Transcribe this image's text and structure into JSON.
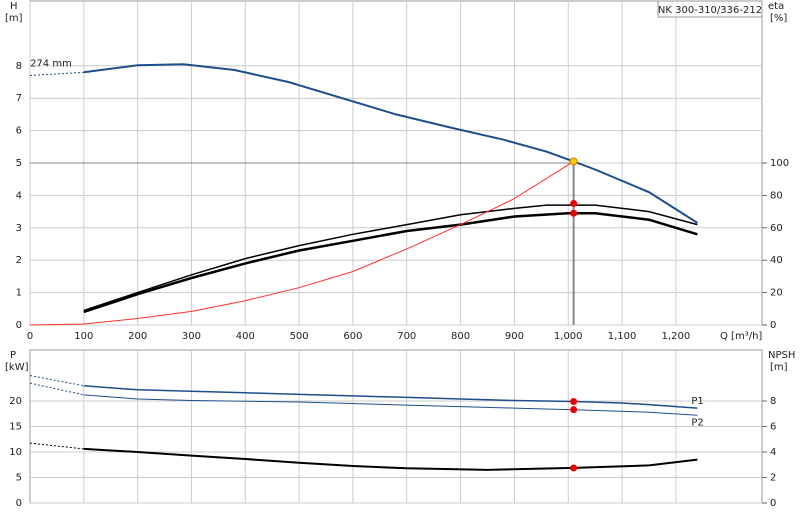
{
  "chart_data": [
    {
      "type": "line",
      "title": "NK 300-310/336-212",
      "ylabel": "H",
      "yunit": "[m]",
      "y2label": "eta",
      "y2unit": "[%]",
      "xlabel": "Q [m³/h]",
      "xlim": [
        0,
        1360
      ],
      "ylim": [
        0,
        10
      ],
      "y2lim": [
        0,
        200
      ],
      "grid": true,
      "xticks": [
        0,
        100,
        200,
        300,
        400,
        500,
        600,
        700,
        800,
        900,
        {
          "value": 1000,
          "label": "1,000"
        },
        {
          "value": 1100,
          "label": "1,100"
        },
        {
          "value": 1200,
          "label": "1,200"
        }
      ],
      "yticks": [
        0,
        1,
        2,
        3,
        4,
        5,
        6,
        7,
        8
      ],
      "y2ticks": [
        0,
        20,
        40,
        60,
        80,
        100
      ],
      "hline": 5,
      "vline": 1010,
      "series": [
        {
          "label": "274 mm",
          "label_at": "start",
          "color": "#1f4e8c",
          "width": 2,
          "axis": "y",
          "x": [
            100,
            200,
            285,
            380,
            480,
            580,
            680,
            780,
            880,
            960,
            1010,
            1050,
            1150,
            1240
          ],
          "values": [
            7.8,
            8.02,
            8.05,
            7.87,
            7.5,
            7.0,
            6.5,
            6.1,
            5.72,
            5.35,
            5.05,
            4.8,
            4.1,
            3.15
          ]
        },
        {
          "color": "#1f4e8c",
          "width": 1,
          "dashed": true,
          "axis": "y",
          "x": [
            0,
            100
          ],
          "values": [
            7.7,
            7.8
          ]
        },
        {
          "color": "#000000",
          "width": 1.5,
          "axis": "y2",
          "x": [
            100,
            200,
            300,
            400,
            500,
            600,
            700,
            800,
            900,
            960,
            1050,
            1150,
            1240
          ],
          "values": [
            9,
            20,
            31,
            41,
            49,
            56,
            62,
            68,
            72,
            74,
            74,
            70,
            62
          ]
        },
        {
          "color": "#000000",
          "width": 2.5,
          "axis": "y2",
          "x": [
            100,
            200,
            300,
            400,
            500,
            600,
            700,
            800,
            900,
            1000,
            1050,
            1150,
            1240
          ],
          "values": [
            8,
            19,
            29,
            38,
            46,
            52,
            58,
            62,
            67,
            69,
            69,
            65,
            56
          ]
        },
        {
          "color": "#ff3030",
          "width": 1,
          "axis": "y",
          "x": [
            0,
            100,
            200,
            300,
            400,
            500,
            600,
            700,
            800,
            900,
            1010
          ],
          "values": [
            0,
            0.03,
            0.2,
            0.42,
            0.75,
            1.15,
            1.65,
            2.35,
            3.1,
            3.9,
            5.05
          ]
        }
      ],
      "points": [
        {
          "x": 1010,
          "value": 5.05,
          "color": "#ffcc00",
          "axis": "y"
        },
        {
          "x": 1010,
          "value": 75,
          "color": "#ee0000",
          "axis": "y2"
        },
        {
          "x": 1010,
          "value": 69,
          "color": "#ee0000",
          "axis": "y2"
        }
      ]
    },
    {
      "type": "line",
      "ylabel": "P",
      "yunit": "[kW]",
      "y2label": "NPSH",
      "y2unit": "[m]",
      "xlim": [
        0,
        1360
      ],
      "ylim": [
        0,
        30
      ],
      "y2lim": [
        0,
        12
      ],
      "grid": true,
      "xgrid": [
        100,
        200,
        300,
        400,
        500,
        600,
        700,
        800,
        900,
        1000,
        1100,
        1200
      ],
      "yticks": [
        0,
        5,
        10,
        15,
        20
      ],
      "y2ticks": [
        0,
        2,
        4,
        6,
        8
      ],
      "series": [
        {
          "label": "P1",
          "label_at": "end",
          "color": "#1f4e8c",
          "width": 1.5,
          "axis": "y",
          "x": [
            100,
            200,
            300,
            400,
            500,
            600,
            700,
            800,
            900,
            1010,
            1100,
            1150,
            1240
          ],
          "values": [
            23,
            22.2,
            21.9,
            21.6,
            21.3,
            21.0,
            20.7,
            20.4,
            20.1,
            19.9,
            19.6,
            19.3,
            18.6
          ]
        },
        {
          "color": "#1f4e8c",
          "width": 1,
          "dashed": true,
          "axis": "y",
          "x": [
            0,
            100
          ],
          "values": [
            25,
            23
          ]
        },
        {
          "label": "P2",
          "label_at": "end",
          "color": "#1f4e8c",
          "width": 1,
          "axis": "y",
          "x": [
            100,
            200,
            300,
            500,
            700,
            900,
            1010,
            1150,
            1240
          ],
          "values": [
            21.2,
            20.4,
            20.1,
            19.8,
            19.2,
            18.6,
            18.3,
            17.8,
            17.2
          ]
        },
        {
          "color": "#1f4e8c",
          "width": 1,
          "dashed": true,
          "axis": "y",
          "x": [
            0,
            100
          ],
          "values": [
            23.5,
            21.2
          ]
        },
        {
          "color": "#000000",
          "width": 2,
          "axis": "y2",
          "x": [
            100,
            200,
            300,
            400,
            500,
            600,
            700,
            850,
            1010,
            1150,
            1240
          ],
          "values": [
            4.24,
            4.0,
            3.72,
            3.45,
            3.15,
            2.9,
            2.72,
            2.6,
            2.75,
            2.95,
            3.4
          ]
        },
        {
          "color": "#000000",
          "width": 1,
          "dashed": true,
          "axis": "y2",
          "x": [
            0,
            100
          ],
          "values": [
            4.7,
            4.24
          ]
        }
      ],
      "points": [
        {
          "x": 1010,
          "value": 19.9,
          "color": "#ee0000",
          "axis": "y"
        },
        {
          "x": 1010,
          "value": 18.3,
          "color": "#ee0000",
          "axis": "y"
        },
        {
          "x": 1010,
          "value": 2.75,
          "color": "#ee0000",
          "axis": "y2"
        }
      ]
    }
  ]
}
